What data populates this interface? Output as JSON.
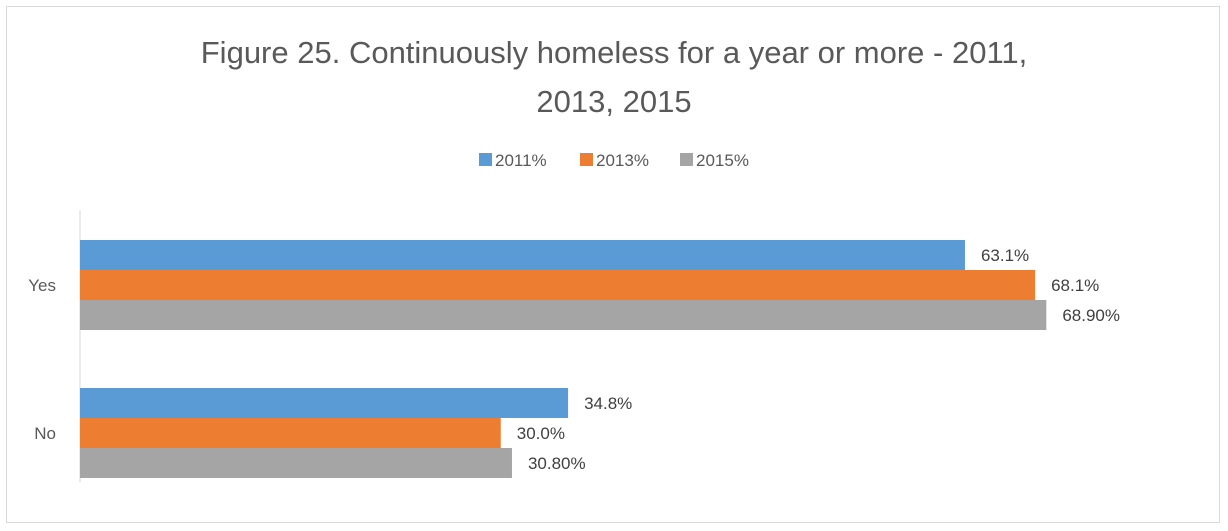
{
  "chart_data": {
    "type": "bar",
    "orientation": "horizontal",
    "title_lines": [
      "Figure 25. Continuously homeless for a year or more - 2011,",
      "2013, 2015"
    ],
    "categories": [
      "Yes",
      "No"
    ],
    "series": [
      {
        "name": "2011%",
        "color": "#5b9bd5",
        "values": [
          63.1,
          34.8
        ],
        "labels": [
          "63.1%",
          "34.8%"
        ]
      },
      {
        "name": "2013%",
        "color": "#ed7d31",
        "values": [
          68.1,
          30.0
        ],
        "labels": [
          "68.1%",
          "30.0%"
        ]
      },
      {
        "name": "2015%",
        "color": "#a5a5a5",
        "values": [
          68.9,
          30.8
        ],
        "labels": [
          "68.90%",
          "30.80%"
        ]
      }
    ],
    "xlim": [
      0,
      75
    ],
    "legend_position": "top",
    "grid": false
  }
}
